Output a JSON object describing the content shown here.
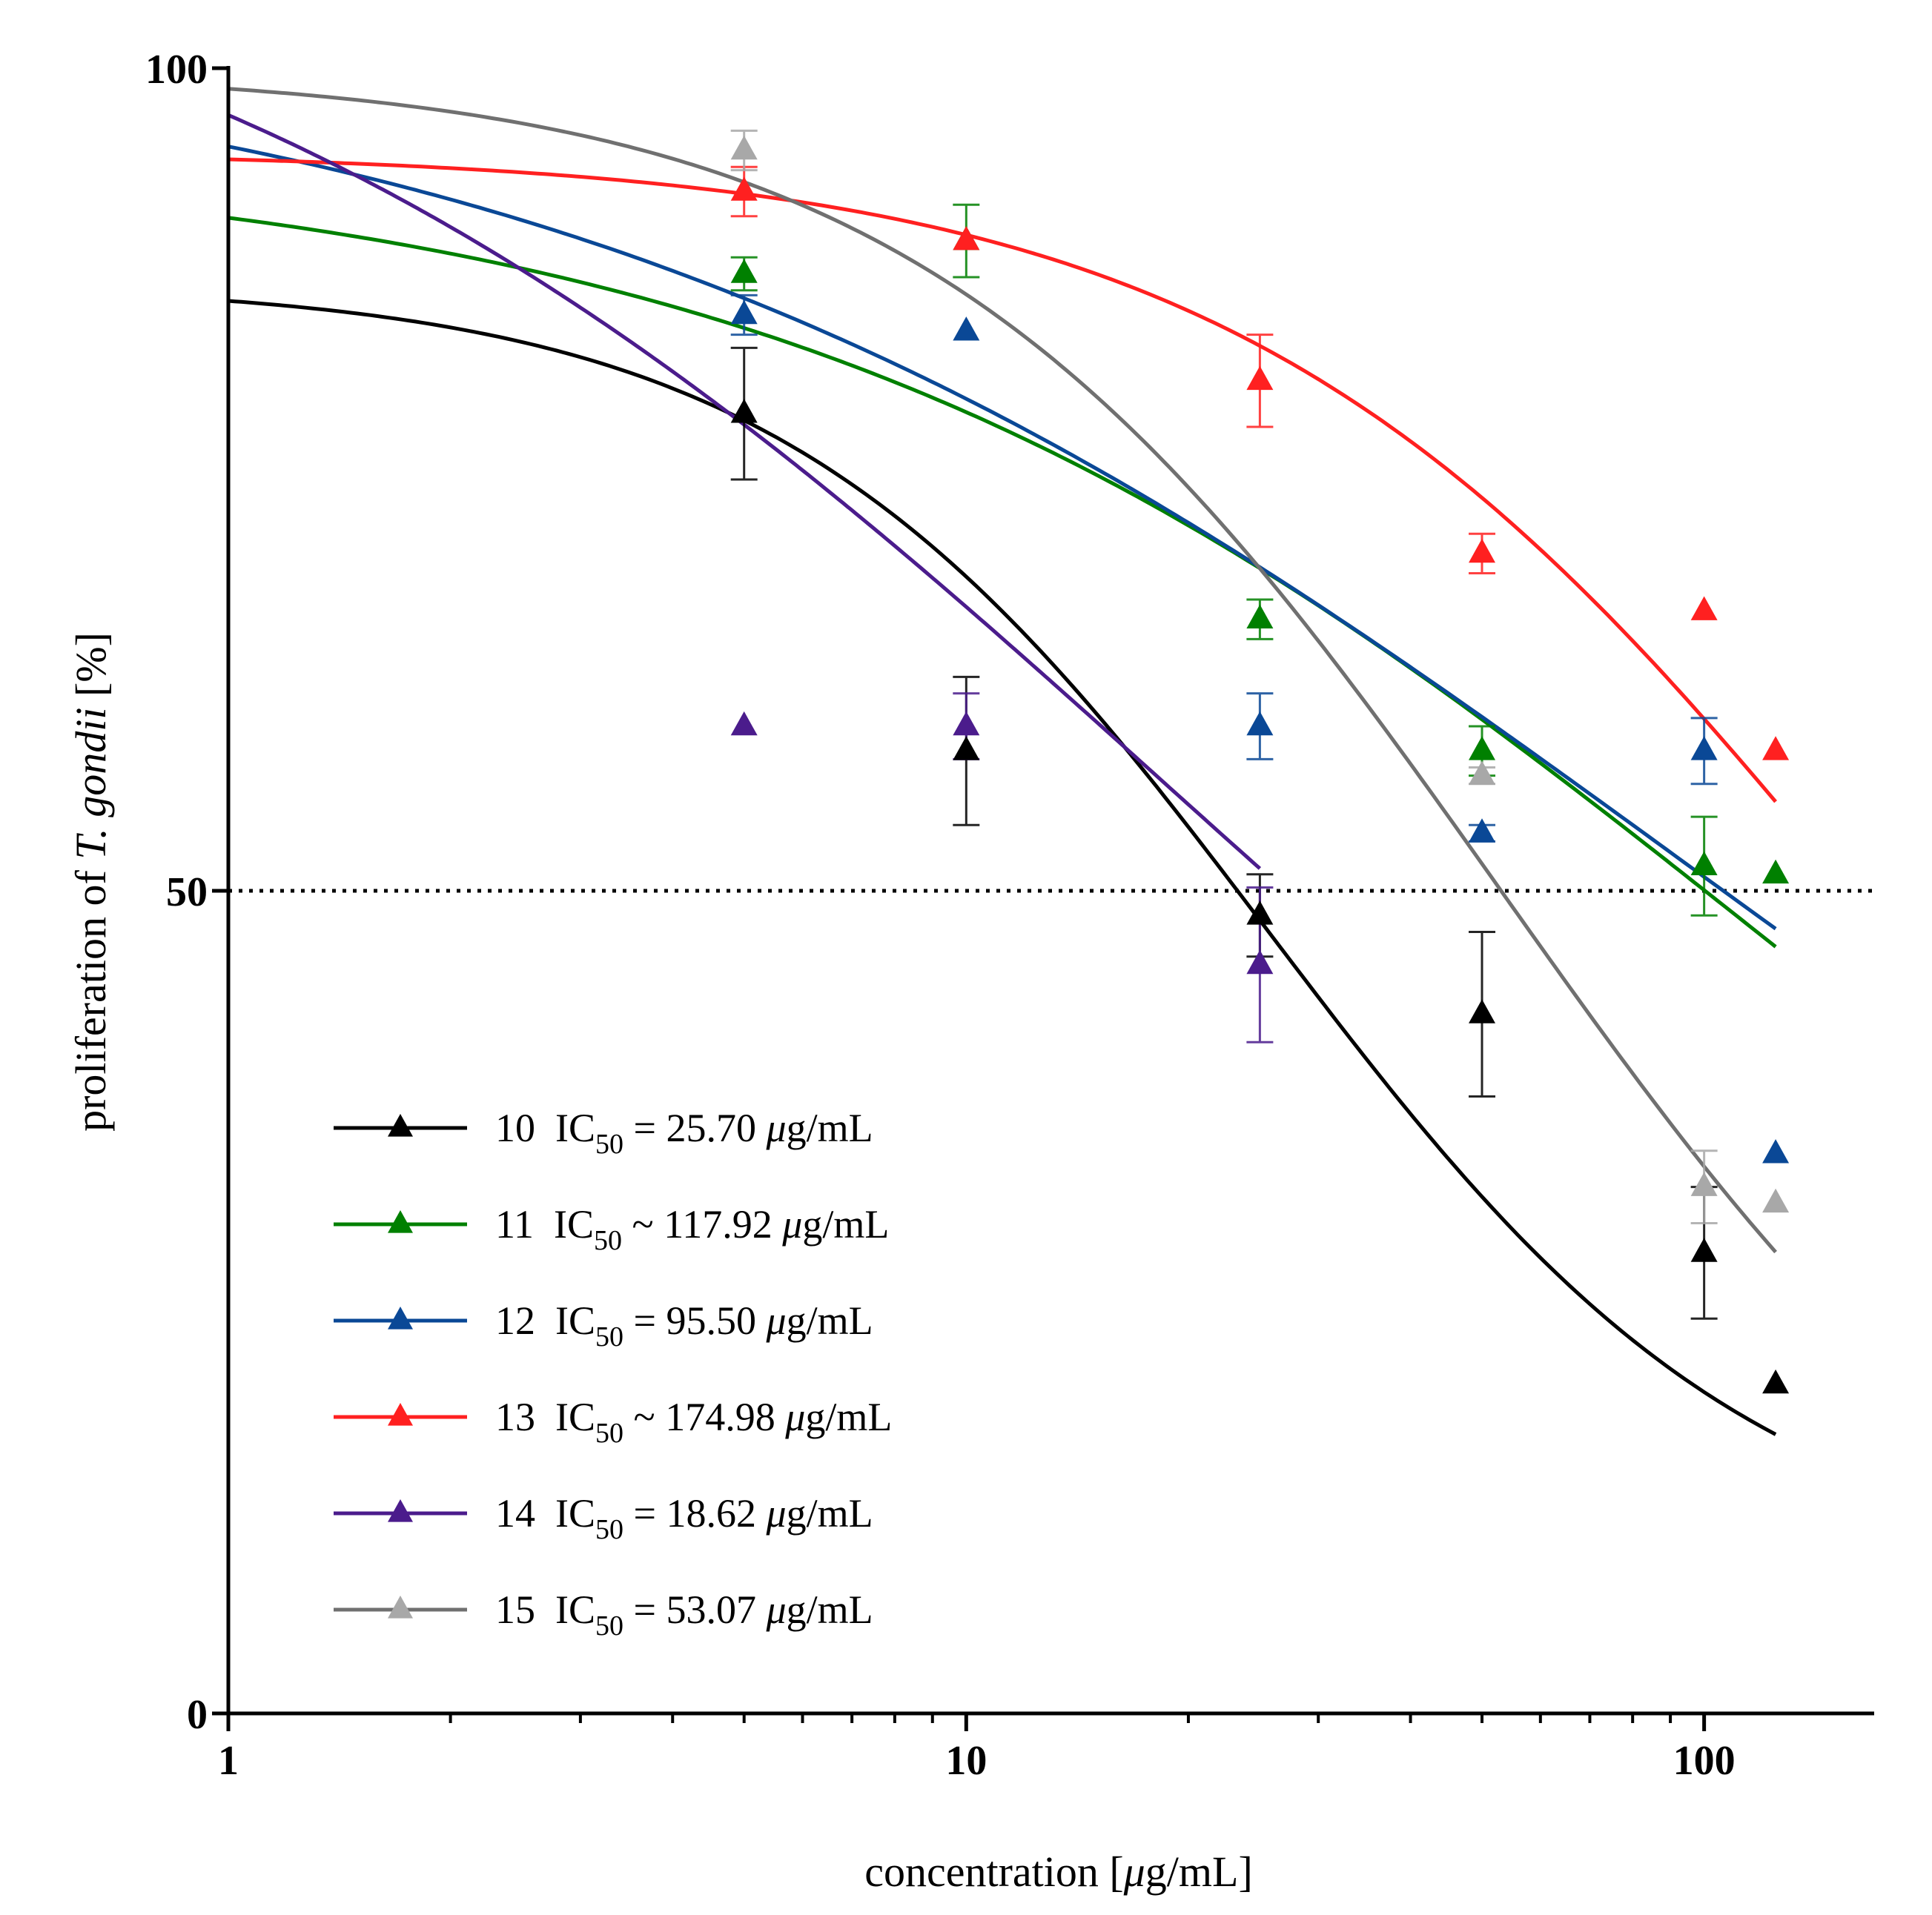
{
  "chart_data": {
    "type": "scatter",
    "title": "",
    "xlabel": "concentration [μg/mL]",
    "xlabel_parts": {
      "pre": "concentration [",
      "mu": "μ",
      "post": "g/mL]"
    },
    "ylabel": "proliferation of T. gondii [%]",
    "ylabel_parts": {
      "pre": "proliferation of ",
      "species": "T. gondii",
      "post": " [%]"
    },
    "x_scale": "log",
    "xlim": [
      1,
      170
    ],
    "ylim": [
      0,
      100
    ],
    "x_ticks": [
      {
        "value": 1,
        "label": "1"
      },
      {
        "value": 10,
        "label": "10"
      },
      {
        "value": 100,
        "label": "100"
      }
    ],
    "y_ticks": [
      {
        "value": 0,
        "label": "0"
      },
      {
        "value": 50,
        "label": "50"
      },
      {
        "value": 100,
        "label": "100"
      }
    ],
    "reference_line": {
      "y": 50,
      "style": "dotted"
    },
    "legend_position": "bottom-left",
    "ic50_label": "IC",
    "ic50_sub": "50",
    "unit_mu": "μ",
    "unit_rest": "g/mL",
    "series": [
      {
        "name": "10",
        "ic50_relation": "=",
        "ic50_value": "25.70",
        "color": "#000000",
        "marker_color": "#000000",
        "points": [
          {
            "x": 5,
            "y": 79,
            "err": 4
          },
          {
            "x": 10,
            "y": 58.5,
            "err": 4.5
          },
          {
            "x": 25,
            "y": 48.5,
            "err": 2.5
          },
          {
            "x": 50,
            "y": 42.5,
            "err": 5
          },
          {
            "x": 100,
            "y": 28,
            "err": 4
          },
          {
            "x": 125,
            "y": 20,
            "err": 0
          }
        ],
        "curve": {
          "top": 87,
          "bottom": 8,
          "ic50": 25.7,
          "hill": 1.3,
          "x_start": 1,
          "x_end": 125
        }
      },
      {
        "name": "11",
        "ic50_relation": "~",
        "ic50_value": "117.92",
        "color": "#008000",
        "marker_color": "#008000",
        "points": [
          {
            "x": 5,
            "y": 87.5,
            "err": 1
          },
          {
            "x": 10,
            "y": 89.5,
            "err": 2.2
          },
          {
            "x": 25,
            "y": 66.5,
            "err": 1.2
          },
          {
            "x": 50,
            "y": 58.5,
            "err": 1.5
          },
          {
            "x": 100,
            "y": 51.5,
            "err": 3
          },
          {
            "x": 125,
            "y": 51,
            "err": 0
          }
        ],
        "curve": {
          "top": 95,
          "bottom": 0,
          "ic50": 117.92,
          "hill": 0.65,
          "x_start": 1,
          "x_end": 125
        }
      },
      {
        "name": "12",
        "ic50_relation": "=",
        "ic50_value": "95.50",
        "color": "#0a4896",
        "marker_color": "#0a4896",
        "points": [
          {
            "x": 5,
            "y": 85,
            "err": 1.2
          },
          {
            "x": 10,
            "y": 84,
            "err": 0
          },
          {
            "x": 25,
            "y": 60,
            "err": 2
          },
          {
            "x": 50,
            "y": 53.5,
            "err": 0.5
          },
          {
            "x": 100,
            "y": 58.5,
            "err": 2
          },
          {
            "x": 125,
            "y": 34,
            "err": 0
          }
        ],
        "curve": {
          "top": 103,
          "bottom": 0,
          "ic50": 95.5,
          "hill": 0.55,
          "x_start": 1,
          "x_end": 125
        }
      },
      {
        "name": "13",
        "ic50_relation": "~",
        "ic50_value": "174.98",
        "color": "#ff2020",
        "marker_color": "#ff2020",
        "points": [
          {
            "x": 5,
            "y": 92.5,
            "err": 1.5
          },
          {
            "x": 10,
            "y": 89.5,
            "err": 0
          },
          {
            "x": 25,
            "y": 81,
            "err": 2.8
          },
          {
            "x": 50,
            "y": 70.5,
            "err": 1.2
          },
          {
            "x": 100,
            "y": 67,
            "err": 0
          },
          {
            "x": 125,
            "y": 58.5,
            "err": 0
          }
        ],
        "curve": {
          "top": 95,
          "bottom": 0,
          "ic50": 174.98,
          "hill": 1.0,
          "x_start": 1,
          "x_end": 125
        }
      },
      {
        "name": "14",
        "ic50_relation": "=",
        "ic50_value": "18.62",
        "color": "#4b1c8c",
        "marker_color": "#4b1c8c",
        "points": [
          {
            "x": 5,
            "y": 60,
            "err": 0
          },
          {
            "x": 10,
            "y": 60,
            "err": 2
          },
          {
            "x": 25,
            "y": 45.5,
            "err": 4.7
          }
        ],
        "curve": {
          "top": 113,
          "bottom": 0,
          "ic50": 18.62,
          "hill": 0.62,
          "x_start": 1,
          "x_end": 25
        }
      },
      {
        "name": "15",
        "ic50_relation": "=",
        "ic50_value": "53.07",
        "color": "#707070",
        "marker_color": "#a8a8a8",
        "points": [
          {
            "x": 5,
            "y": 95,
            "err": 1.2
          },
          {
            "x": 50,
            "y": 57,
            "err": 0.5
          },
          {
            "x": 100,
            "y": 32,
            "err": 2.2
          },
          {
            "x": 125,
            "y": 31,
            "err": 0
          }
        ],
        "curve": {
          "top": 100,
          "bottom": 0,
          "ic50": 53.07,
          "hill": 1.1,
          "x_start": 1,
          "x_end": 125
        }
      }
    ]
  }
}
